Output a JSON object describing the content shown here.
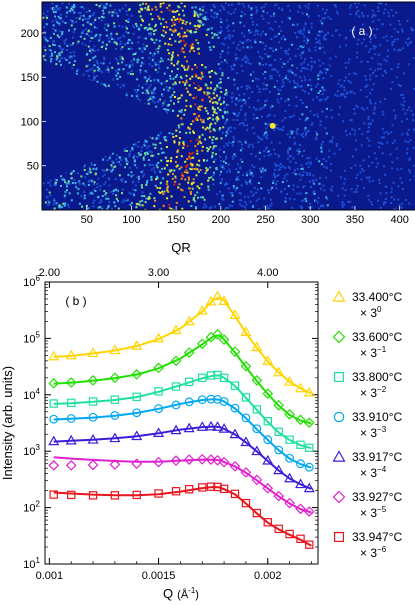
{
  "chart_data": [
    {
      "type": "heatmap",
      "panel_label": "( a )",
      "x_ticks": [
        50,
        100,
        150,
        200,
        250,
        300,
        350,
        400
      ],
      "y_ticks": [
        50,
        100,
        150,
        200
      ],
      "xlim": [
        0,
        425
      ],
      "ylim": [
        0,
        235
      ],
      "colormap": [
        "#0a1a8c",
        "#1e4fd8",
        "#3fb8e8",
        "#7fe08a",
        "#f5e82a",
        "#f08a1c",
        "#d42010"
      ],
      "features": {
        "ring_center": [
          -10,
          118
        ],
        "ring_inner_radius": 150,
        "ring_outer_radius": 218,
        "wedge_apex_x": 160,
        "wedge_apex_y": 100,
        "spot": [
          258,
          95
        ]
      }
    },
    {
      "type": "scatter",
      "panel_label": "( b )",
      "xlabel": "Q",
      "xlabel_unit": "(Å",
      "xlabel_unit_sup": "-1",
      "xlabel_unit_close": ")",
      "ylabel": "Intensity (arb. units)",
      "top_axis_label": "QR",
      "top_ticks": [
        {
          "label": "2.00",
          "q": 0.001
        },
        {
          "label": "3.00",
          "q": 0.0015
        },
        {
          "label": "4.00",
          "q": 0.002
        }
      ],
      "xlim": [
        0.00098,
        0.00223
      ],
      "x_ticks": [
        {
          "label": "0.001",
          "value": 0.001
        },
        {
          "label": "0.0015",
          "value": 0.0015
        },
        {
          "label": "0.002",
          "value": 0.002
        }
      ],
      "ylim": [
        10,
        1000000
      ],
      "y_scale": "log",
      "y_ticks": [
        {
          "base": "10",
          "exp": "1",
          "value": 10
        },
        {
          "base": "10",
          "exp": "2",
          "value": 100
        },
        {
          "base": "10",
          "exp": "3",
          "value": 1000
        },
        {
          "base": "10",
          "exp": "4",
          "value": 10000
        },
        {
          "base": "10",
          "exp": "5",
          "value": 100000
        },
        {
          "base": "10",
          "exp": "6",
          "value": 1000000
        }
      ],
      "series": [
        {
          "name": "33.400°C",
          "factor_base": "× 3",
          "factor_exp": "0",
          "color": "#ffd500",
          "marker": "triangle-up",
          "x": [
            0.00102,
            0.0011,
            0.0012,
            0.0013,
            0.0014,
            0.0015,
            0.00158,
            0.00164,
            0.0017,
            0.00174,
            0.00177,
            0.0018,
            0.00185,
            0.0019,
            0.00195,
            0.002,
            0.00205,
            0.0021,
            0.00215,
            0.00219
          ],
          "y": [
            48000,
            50000,
            55000,
            62000,
            74000,
            100000,
            140000,
            200000,
            310000,
            450000,
            560000,
            460000,
            260000,
            130000,
            70000,
            40000,
            25000,
            17000,
            13000,
            11000
          ]
        },
        {
          "name": "33.600°C",
          "factor_base": "× 3",
          "factor_exp": "−1",
          "color": "#22e000",
          "marker": "diamond",
          "x": [
            0.00102,
            0.0011,
            0.0012,
            0.0013,
            0.0014,
            0.0015,
            0.00158,
            0.00164,
            0.0017,
            0.00174,
            0.00177,
            0.0018,
            0.00185,
            0.0019,
            0.00195,
            0.002,
            0.00205,
            0.0021,
            0.00215,
            0.00219
          ],
          "y": [
            16000,
            16500,
            18000,
            20000,
            23000,
            30000,
            40000,
            56000,
            80000,
            105000,
            118000,
            95000,
            58000,
            32000,
            18000,
            10500,
            6500,
            4500,
            3600,
            3200
          ]
        },
        {
          "name": "33.800°C",
          "factor_base": "× 3",
          "factor_exp": "−2",
          "color": "#20e0a0",
          "marker": "square",
          "x": [
            0.00102,
            0.0011,
            0.0012,
            0.0013,
            0.0014,
            0.0015,
            0.00158,
            0.00164,
            0.0017,
            0.00174,
            0.00177,
            0.0018,
            0.00185,
            0.0019,
            0.00195,
            0.002,
            0.00205,
            0.0021,
            0.00215,
            0.00219
          ],
          "y": [
            7000,
            7200,
            7600,
            8200,
            9200,
            11500,
            14000,
            17000,
            20000,
            22000,
            22500,
            20000,
            14500,
            9000,
            5500,
            3400,
            2200,
            1600,
            1300,
            1150
          ]
        },
        {
          "name": "33.910°C",
          "factor_base": "× 3",
          "factor_exp": "−3",
          "color": "#00a8f0",
          "marker": "circle",
          "x": [
            0.00102,
            0.0011,
            0.0012,
            0.0013,
            0.0014,
            0.0015,
            0.00158,
            0.00164,
            0.0017,
            0.00174,
            0.00177,
            0.0018,
            0.00185,
            0.0019,
            0.00195,
            0.002,
            0.00205,
            0.0021,
            0.00215,
            0.00219
          ],
          "y": [
            3700,
            3800,
            4000,
            4300,
            4800,
            5700,
            6600,
            7500,
            8200,
            8400,
            8300,
            7600,
            5800,
            3900,
            2500,
            1600,
            1050,
            750,
            600,
            520
          ]
        },
        {
          "name": "33.917°C",
          "factor_base": "× 3",
          "factor_exp": "−4",
          "color": "#3a1ed8",
          "marker": "triangle-up",
          "x": [
            0.00102,
            0.0011,
            0.0012,
            0.0013,
            0.0014,
            0.0015,
            0.00158,
            0.00164,
            0.0017,
            0.00174,
            0.00177,
            0.0018,
            0.00185,
            0.0019,
            0.00195,
            0.002,
            0.00205,
            0.0021,
            0.00215,
            0.00219
          ],
          "y": [
            1500,
            1550,
            1600,
            1700,
            1850,
            2100,
            2350,
            2550,
            2700,
            2750,
            2700,
            2500,
            2000,
            1450,
            1000,
            680,
            460,
            330,
            260,
            220
          ]
        },
        {
          "name": "33.927°C",
          "factor_base": "× 3",
          "factor_exp": "−5",
          "color": "#e020d0",
          "marker": "diamond",
          "x": [
            0.00102,
            0.0011,
            0.0012,
            0.0013,
            0.0014,
            0.0015,
            0.00158,
            0.00164,
            0.0017,
            0.00174,
            0.00177,
            0.0018,
            0.00185,
            0.0019,
            0.00195,
            0.002,
            0.00205,
            0.0021,
            0.00215,
            0.00219
          ],
          "y": [
            560,
            560,
            570,
            580,
            600,
            640,
            680,
            710,
            720,
            710,
            690,
            640,
            540,
            420,
            310,
            220,
            160,
            120,
            95,
            85
          ]
        },
        {
          "name": "33.947°C",
          "factor_base": "× 3",
          "factor_exp": "−6",
          "color": "#e8141e",
          "marker": "square",
          "x": [
            0.00102,
            0.0011,
            0.0012,
            0.0013,
            0.0014,
            0.0015,
            0.00158,
            0.00164,
            0.0017,
            0.00174,
            0.00177,
            0.0018,
            0.00185,
            0.0019,
            0.00195,
            0.002,
            0.00205,
            0.0021,
            0.00215,
            0.00219
          ],
          "y": [
            170,
            168,
            165,
            165,
            168,
            178,
            195,
            212,
            228,
            235,
            232,
            215,
            175,
            120,
            80,
            55,
            42,
            34,
            28,
            22
          ]
        }
      ],
      "fit_curves": [
        {
          "color": "#ffd500",
          "x": [
            0.00102,
            0.0011,
            0.0012,
            0.0013,
            0.0014,
            0.0015,
            0.0016,
            0.0017,
            0.00175,
            0.00178,
            0.0018,
            0.00185,
            0.0019,
            0.00195,
            0.002,
            0.00205,
            0.0021,
            0.00215,
            0.0022
          ],
          "y": [
            47000,
            49000,
            54000,
            61000,
            73000,
            97000,
            150000,
            300000,
            480000,
            540000,
            470000,
            250000,
            125000,
            68000,
            39000,
            25000,
            17000,
            13000,
            10500
          ]
        },
        {
          "color": "#22e000",
          "x": [
            0.00102,
            0.0011,
            0.0012,
            0.0013,
            0.0014,
            0.0015,
            0.0016,
            0.0017,
            0.00175,
            0.00178,
            0.0018,
            0.00185,
            0.0019,
            0.00195,
            0.002,
            0.00205,
            0.0021,
            0.00215,
            0.0022
          ],
          "y": [
            15800,
            16300,
            17800,
            19800,
            22800,
            29500,
            44000,
            78000,
            108000,
            114000,
            96000,
            56000,
            31000,
            17500,
            10300,
            6400,
            4400,
            3500,
            3100
          ]
        },
        {
          "color": "#20e0a0",
          "x": [
            0.00102,
            0.0011,
            0.0012,
            0.0013,
            0.0014,
            0.0015,
            0.0016,
            0.0017,
            0.00175,
            0.00178,
            0.0018,
            0.00185,
            0.0019,
            0.00195,
            0.002,
            0.00205,
            0.0021,
            0.00215,
            0.0022
          ],
          "y": [
            6900,
            7100,
            7500,
            8100,
            9100,
            11300,
            14800,
            19600,
            21800,
            22000,
            20000,
            14300,
            8900,
            5400,
            3300,
            2150,
            1580,
            1280,
            1130
          ]
        },
        {
          "color": "#00a8f0",
          "x": [
            0.00102,
            0.0011,
            0.0012,
            0.0013,
            0.0014,
            0.0015,
            0.0016,
            0.0017,
            0.00175,
            0.00178,
            0.0018,
            0.00185,
            0.0019,
            0.00195,
            0.002,
            0.00205,
            0.0021,
            0.00215,
            0.0022
          ],
          "y": [
            3650,
            3750,
            3950,
            4250,
            4750,
            5650,
            6900,
            8100,
            8350,
            8200,
            7600,
            5700,
            3850,
            2450,
            1580,
            1040,
            740,
            590,
            510
          ]
        },
        {
          "color": "#3a1ed8",
          "x": [
            0.00102,
            0.0011,
            0.0012,
            0.0013,
            0.0014,
            0.0015,
            0.0016,
            0.0017,
            0.00175,
            0.00178,
            0.0018,
            0.00185,
            0.0019,
            0.00195,
            0.002,
            0.00205,
            0.0021,
            0.00215,
            0.0022
          ],
          "y": [
            1480,
            1530,
            1590,
            1690,
            1840,
            2080,
            2420,
            2680,
            2730,
            2680,
            2490,
            1980,
            1430,
            990,
            670,
            455,
            328,
            258,
            215
          ]
        },
        {
          "color": "#e020d0",
          "x": [
            0.00102,
            0.0011,
            0.0012,
            0.0013,
            0.0014,
            0.0015,
            0.0016,
            0.0017,
            0.00175,
            0.00178,
            0.0018,
            0.00185,
            0.0019,
            0.00195,
            0.002,
            0.00205,
            0.0021,
            0.00215,
            0.0022
          ],
          "y": [
            780,
            740,
            700,
            670,
            650,
            650,
            680,
            710,
            705,
            690,
            640,
            535,
            415,
            305,
            218,
            158,
            118,
            94,
            82
          ]
        },
        {
          "color": "#e8141e",
          "x": [
            0.00102,
            0.0011,
            0.0012,
            0.0013,
            0.0014,
            0.0015,
            0.0016,
            0.0017,
            0.00175,
            0.00178,
            0.0018,
            0.00185,
            0.0019,
            0.00195,
            0.002,
            0.00205,
            0.0021,
            0.00215,
            0.0022
          ],
          "y": [
            185,
            178,
            170,
            166,
            166,
            172,
            192,
            222,
            232,
            228,
            212,
            172,
            118,
            79,
            54,
            41,
            33,
            27,
            21
          ]
        }
      ]
    }
  ]
}
